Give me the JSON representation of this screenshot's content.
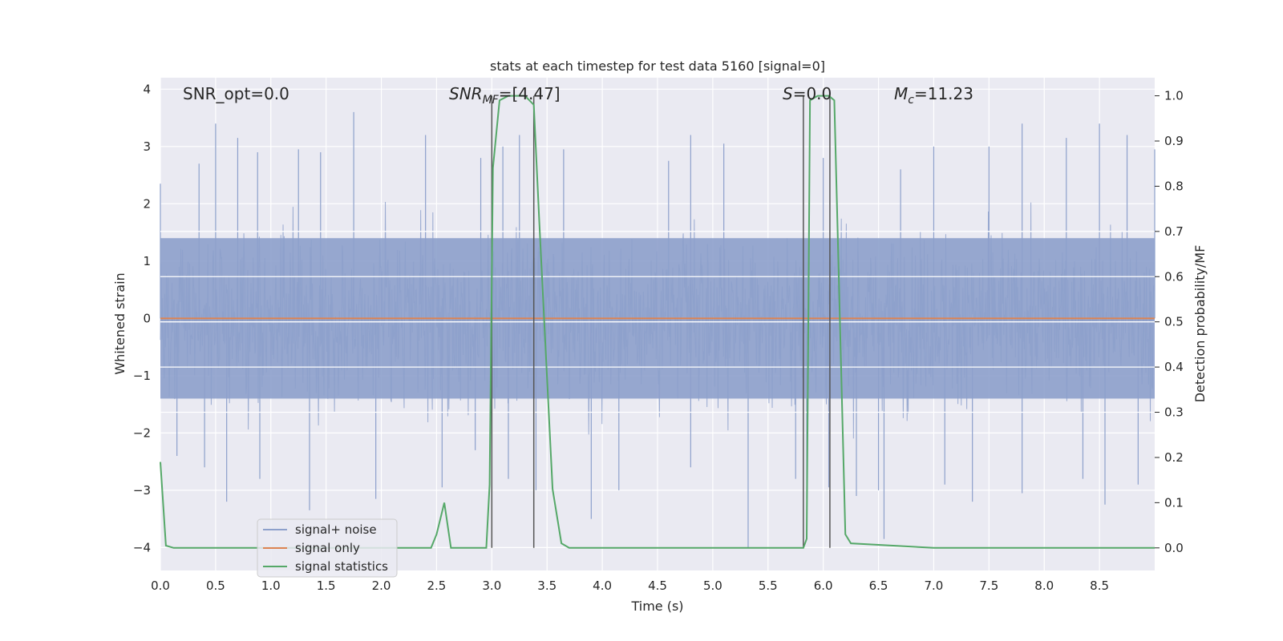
{
  "chart_data": {
    "type": "line",
    "title": "stats at each timestep for test data 5160 [signal=0]",
    "xlabel": "Time (s)",
    "ylabel_left": "Whitened strain",
    "ylabel_right": "Detection probability/MF",
    "xlim": [
      0.0,
      9.0
    ],
    "ylim_left": [
      -4.4,
      4.2
    ],
    "ylim_right": [
      -0.05,
      1.04
    ],
    "x_ticks": [
      "0.0",
      "0.5",
      "1.0",
      "1.5",
      "2.0",
      "2.5",
      "3.0",
      "3.5",
      "4.0",
      "4.5",
      "5.0",
      "5.5",
      "6.0",
      "6.5",
      "7.0",
      "7.5",
      "8.0",
      "8.5"
    ],
    "y_ticks_left": [
      "4",
      "3",
      "2",
      "1",
      "0",
      "−1",
      "−2",
      "−3",
      "−4"
    ],
    "y_ticks_right": [
      "1.0",
      "0.9",
      "0.8",
      "0.7",
      "0.6",
      "0.5",
      "0.4",
      "0.3",
      "0.2",
      "0.1",
      "0.0"
    ],
    "grid": true,
    "legend_position": "lower-left",
    "annotations": {
      "snr_opt": "SNR_opt=0.0",
      "snr_mf_main": "SNR",
      "snr_mf_sub": "MF",
      "snr_mf_value": "=[4.47]",
      "s_main": "S",
      "s_value": "=0.0",
      "mc_main": "M",
      "mc_sub": "c",
      "mc_value": "=11.23"
    },
    "series": [
      {
        "name": "signal+ noise",
        "color": "#8da0cb",
        "axis": "left",
        "description_range": [
          -4.0,
          3.8
        ],
        "spikes_high": [
          [
            0.0,
            2.35
          ],
          [
            0.35,
            2.7
          ],
          [
            0.5,
            3.4
          ],
          [
            0.7,
            3.15
          ],
          [
            0.88,
            2.9
          ],
          [
            1.25,
            2.95
          ],
          [
            1.45,
            2.9
          ],
          [
            1.75,
            3.6
          ],
          [
            2.4,
            3.2
          ],
          [
            2.9,
            2.8
          ],
          [
            3.1,
            3.0
          ],
          [
            3.25,
            3.2
          ],
          [
            3.65,
            2.95
          ],
          [
            4.6,
            2.75
          ],
          [
            4.8,
            3.2
          ],
          [
            5.1,
            3.05
          ],
          [
            6.0,
            2.8
          ],
          [
            6.7,
            2.6
          ],
          [
            7.0,
            3.0
          ],
          [
            7.5,
            3.0
          ],
          [
            7.8,
            3.4
          ],
          [
            8.2,
            3.15
          ],
          [
            8.5,
            3.4
          ],
          [
            8.75,
            3.2
          ],
          [
            9.0,
            2.95
          ]
        ],
        "spikes_low": [
          [
            0.15,
            -2.4
          ],
          [
            0.4,
            -2.6
          ],
          [
            0.6,
            -3.2
          ],
          [
            0.9,
            -2.8
          ],
          [
            1.35,
            -3.35
          ],
          [
            1.95,
            -3.15
          ],
          [
            2.55,
            -2.95
          ],
          [
            2.85,
            -2.3
          ],
          [
            3.15,
            -2.8
          ],
          [
            3.4,
            -3.0
          ],
          [
            3.9,
            -3.5
          ],
          [
            4.15,
            -3.0
          ],
          [
            4.8,
            -2.6
          ],
          [
            5.32,
            -4.0
          ],
          [
            5.75,
            -2.8
          ],
          [
            5.85,
            -3.15
          ],
          [
            6.05,
            -2.95
          ],
          [
            6.3,
            -3.1
          ],
          [
            6.5,
            -3.0
          ],
          [
            6.55,
            -3.85
          ],
          [
            7.1,
            -2.9
          ],
          [
            7.35,
            -3.2
          ],
          [
            7.8,
            -3.05
          ],
          [
            8.35,
            -2.8
          ],
          [
            8.55,
            -3.25
          ],
          [
            8.85,
            -2.9
          ]
        ],
        "band_abs": 1.4
      },
      {
        "name": "signal only",
        "color": "#dd8452",
        "axis": "left",
        "x": [
          0.0,
          9.0
        ],
        "y": [
          0.0,
          0.0
        ]
      },
      {
        "name": "signal statistics",
        "color": "#55a868",
        "axis": "right",
        "x": [
          0.0,
          0.05,
          0.12,
          0.2,
          0.5,
          1.0,
          1.5,
          2.0,
          2.2,
          2.3,
          2.45,
          2.5,
          2.57,
          2.63,
          2.7,
          2.95,
          2.98,
          3.01,
          3.07,
          3.15,
          3.3,
          3.38,
          3.43,
          3.55,
          3.63,
          3.7,
          4.0,
          5.0,
          5.55,
          5.75,
          5.82,
          5.85,
          5.88,
          5.95,
          6.05,
          6.1,
          6.2,
          6.25,
          7.0,
          8.0,
          9.0
        ],
        "y": [
          0.19,
          0.005,
          0.0,
          0.0,
          0.0,
          0.0,
          0.0,
          0.0,
          0.0,
          0.0,
          0.0,
          0.03,
          0.1,
          0.0,
          0.0,
          0.0,
          0.14,
          0.84,
          0.99,
          1.0,
          1.0,
          0.98,
          0.72,
          0.13,
          0.01,
          0.0,
          0.0,
          0.0,
          0.0,
          0.0,
          0.0,
          0.02,
          0.99,
          1.0,
          1.0,
          0.99,
          0.03,
          0.01,
          0.0,
          0.0,
          0.0
        ]
      }
    ],
    "vertical_markers": [
      {
        "x": 3.0,
        "y_top": 1.0,
        "y_bottom": 0.0
      },
      {
        "x": 3.38,
        "y_top": 1.0,
        "y_bottom": 0.0
      },
      {
        "x": 5.82,
        "y_top": 1.0,
        "y_bottom": 0.0
      },
      {
        "x": 6.06,
        "y_top": 1.0,
        "y_bottom": 0.0
      }
    ],
    "horizontal_guides_right": [
      0.7,
      0.6,
      0.5,
      0.4,
      0.3
    ]
  }
}
